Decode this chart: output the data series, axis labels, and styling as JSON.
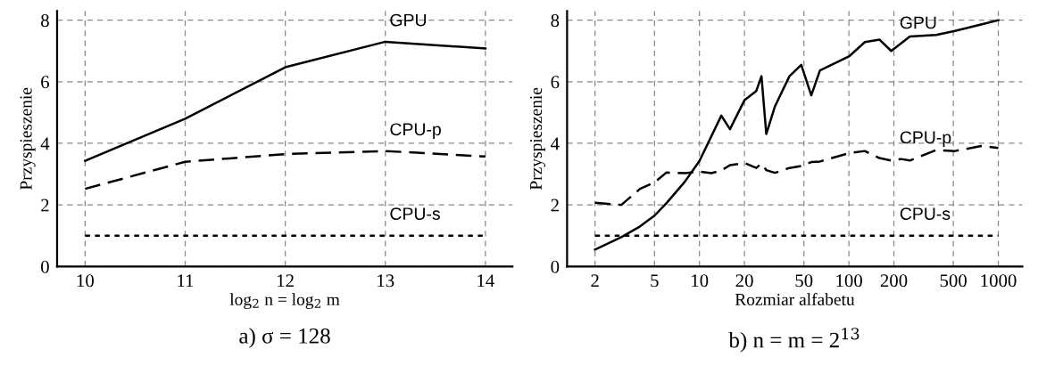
{
  "chart_data": [
    {
      "type": "line",
      "title": "a) σ = 128",
      "xlabel": "log$_{2}$ n = log$_{2}$ m",
      "ylabel": "Przyspieszenie",
      "x": [
        10,
        11,
        12,
        13,
        14
      ],
      "series": [
        {
          "name": "GPU",
          "color": "#000000",
          "line_style": "solid",
          "values": [
            3.43,
            4.8,
            6.47,
            7.3,
            7.08
          ]
        },
        {
          "name": "CPU-p",
          "color": "#000000",
          "line_style": "dashed",
          "values": [
            2.52,
            3.4,
            3.65,
            3.75,
            3.57
          ]
        },
        {
          "name": "CPU-s",
          "color": "#000000",
          "line_style": "dotted",
          "values": [
            1,
            1,
            1,
            1,
            1
          ]
        }
      ],
      "xlim": [
        9.72,
        14.27
      ],
      "xticks": [
        10,
        11,
        12,
        13,
        14
      ],
      "ylim": [
        0,
        8.3
      ],
      "yticks": [
        0,
        2,
        4,
        6,
        8
      ],
      "grid": true,
      "legend": false,
      "marker": "none"
    },
    {
      "type": "line",
      "title": "b) n = m = 2$^{13}$",
      "xlabel": "Rozmiar alfabetu",
      "ylabel": "Przyspieszenie",
      "log": "x",
      "series": [
        {
          "name": "GPU",
          "color": "#000000",
          "line_style": "solid",
          "x": [
            2,
            3,
            4,
            5,
            6,
            8,
            10,
            14,
            16,
            20,
            24,
            26,
            28,
            32,
            40,
            48,
            56,
            64,
            100,
            128,
            160,
            192,
            256,
            384,
            512,
            768,
            1000
          ],
          "values": [
            0.55,
            0.95,
            1.3,
            1.65,
            2.05,
            2.76,
            3.43,
            4.9,
            4.46,
            5.4,
            5.7,
            6.18,
            4.3,
            5.2,
            6.18,
            6.55,
            5.56,
            6.37,
            6.82,
            7.29,
            7.37,
            7.0,
            7.47,
            7.52,
            7.65,
            7.86,
            8.0
          ]
        },
        {
          "name": "CPU-p",
          "color": "#000000",
          "line_style": "dashed",
          "x": [
            2,
            3,
            4,
            5,
            6,
            8,
            10,
            12,
            14,
            16,
            20,
            24,
            26,
            28,
            32,
            40,
            48,
            56,
            64,
            100,
            128,
            160,
            192,
            224,
            256,
            384,
            512,
            768,
            1000
          ],
          "values": [
            2.07,
            2.0,
            2.52,
            2.73,
            3.05,
            3.03,
            3.08,
            3.03,
            3.12,
            3.29,
            3.36,
            3.2,
            3.34,
            3.13,
            3.04,
            3.2,
            3.26,
            3.39,
            3.41,
            3.68,
            3.75,
            3.52,
            3.44,
            3.49,
            3.44,
            3.78,
            3.75,
            3.91,
            3.85
          ]
        },
        {
          "name": "CPU-s",
          "color": "#000000",
          "line_style": "dotted",
          "x": [
            2,
            1000
          ],
          "values": [
            1,
            1
          ]
        }
      ],
      "xlim": [
        1.3,
        1450
      ],
      "xticks": [
        2,
        5,
        10,
        20,
        50,
        100,
        200,
        500,
        1000
      ],
      "ylim": [
        0,
        8.3
      ],
      "yticks": [
        0,
        2,
        4,
        6,
        8
      ],
      "grid": true,
      "legend": false,
      "marker": "none"
    }
  ]
}
